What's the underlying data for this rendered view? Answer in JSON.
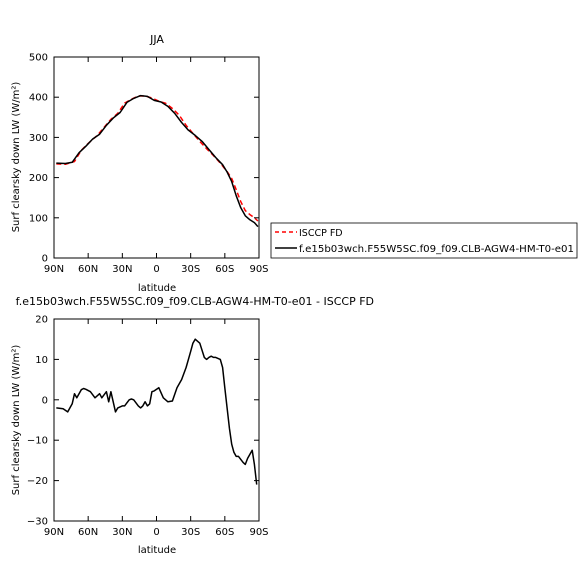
{
  "chart_data": [
    {
      "type": "line",
      "title": "JJA",
      "xlabel": "latitude",
      "ylabel": "Surf clearsky down LW (W/m²)",
      "ylim": [
        0,
        500
      ],
      "yticks": [
        "0",
        "100",
        "200",
        "300",
        "400",
        "500"
      ],
      "xlim": [
        90,
        -90
      ],
      "xticks": [
        {
          "v": 90,
          "label": "90N"
        },
        {
          "v": 60,
          "label": "60N"
        },
        {
          "v": 30,
          "label": "30N"
        },
        {
          "v": 0,
          "label": "0"
        },
        {
          "v": -30,
          "label": "30S"
        },
        {
          "v": -60,
          "label": "60S"
        },
        {
          "v": -90,
          "label": "90S"
        }
      ],
      "legend_position": "right",
      "series": [
        {
          "name": "ISCCP FD",
          "color": "#ff0000",
          "style": "dashed",
          "x": [
            88,
            80,
            72,
            66,
            60,
            52,
            46,
            40,
            34,
            28,
            22,
            16,
            10,
            4,
            -2,
            -8,
            -14,
            -20,
            -26,
            -32,
            -38,
            -44,
            -50,
            -56,
            -62,
            -66,
            -70,
            -74,
            -78,
            -82,
            -86,
            -89
          ],
          "y": [
            234,
            233,
            240,
            268,
            285,
            305,
            325,
            345,
            360,
            385,
            395,
            403,
            403,
            398,
            390,
            385,
            372,
            355,
            330,
            310,
            290,
            272,
            255,
            236,
            215,
            198,
            170,
            140,
            118,
            108,
            100,
            92
          ]
        },
        {
          "name": "f.e15b03wch.F55W5SC.f09_f09.CLB-AGW4-HM-T0-e01",
          "color": "#000000",
          "style": "solid",
          "x": [
            88,
            80,
            74,
            68,
            62,
            56,
            50,
            44,
            38,
            32,
            26,
            20,
            14,
            8,
            2,
            -4,
            -10,
            -16,
            -22,
            -28,
            -34,
            -40,
            -46,
            -52,
            -58,
            -62,
            -66,
            -70,
            -74,
            -78,
            -82,
            -86,
            -89
          ],
          "y": [
            236,
            235,
            238,
            262,
            278,
            296,
            308,
            330,
            348,
            362,
            387,
            397,
            404,
            402,
            392,
            388,
            377,
            360,
            337,
            318,
            305,
            290,
            270,
            250,
            232,
            214,
            190,
            155,
            125,
            105,
            95,
            88,
            78
          ]
        }
      ]
    },
    {
      "type": "line",
      "title": "f.e15b03wch.F55W5SC.f09_f09.CLB-AGW4-HM-T0-e01 - ISCCP FD",
      "xlabel": "latitude",
      "ylabel": "Surf clearsky down LW (W/m²)",
      "ylim": [
        -30,
        20
      ],
      "yticks": [
        "−30",
        "−20",
        "−10",
        "0",
        "10",
        "20"
      ],
      "xlim": [
        90,
        -90
      ],
      "xticks": [
        {
          "v": 90,
          "label": "90N"
        },
        {
          "v": 60,
          "label": "60N"
        },
        {
          "v": 30,
          "label": "30N"
        },
        {
          "v": 0,
          "label": "0"
        },
        {
          "v": -30,
          "label": "30S"
        },
        {
          "v": -60,
          "label": "60S"
        },
        {
          "v": -90,
          "label": "90S"
        }
      ],
      "series": [
        {
          "color": "#000000",
          "style": "solid",
          "x": [
            88,
            82,
            78,
            74,
            72,
            70,
            66,
            64,
            62,
            58,
            54,
            50,
            48,
            44,
            42,
            40,
            36,
            34,
            30,
            28,
            24,
            22,
            20,
            16,
            14,
            12,
            10,
            8,
            6,
            4,
            2,
            -2,
            -6,
            -10,
            -14,
            -18,
            -22,
            -26,
            -28,
            -30,
            -32,
            -34,
            -36,
            -38,
            -42,
            -44,
            -46,
            -48,
            -50,
            -52,
            -56,
            -58,
            -60,
            -62,
            -64,
            -66,
            -68,
            -70,
            -72,
            -76,
            -78,
            -80,
            -84,
            -86,
            -88
          ],
          "y": [
            -2,
            -2.2,
            -3,
            -1,
            1.5,
            0.5,
            2.5,
            2.8,
            2.6,
            2,
            0.5,
            1.5,
            0.5,
            2,
            -0.5,
            2,
            -3,
            -2,
            -1.5,
            -1.5,
            0,
            0.2,
            0,
            -1.5,
            -2,
            -1.5,
            -0.5,
            -1.5,
            -1,
            2,
            2.2,
            3,
            0.5,
            -0.5,
            -0.3,
            3,
            5,
            8,
            10,
            12,
            14,
            15,
            14.5,
            14,
            10.5,
            10,
            10.5,
            10.8,
            10.5,
            10.5,
            10,
            8,
            3,
            -2,
            -7,
            -11,
            -13,
            -14,
            -14,
            -15.5,
            -16,
            -14.5,
            -12.5,
            -16,
            -21
          ]
        }
      ]
    }
  ]
}
